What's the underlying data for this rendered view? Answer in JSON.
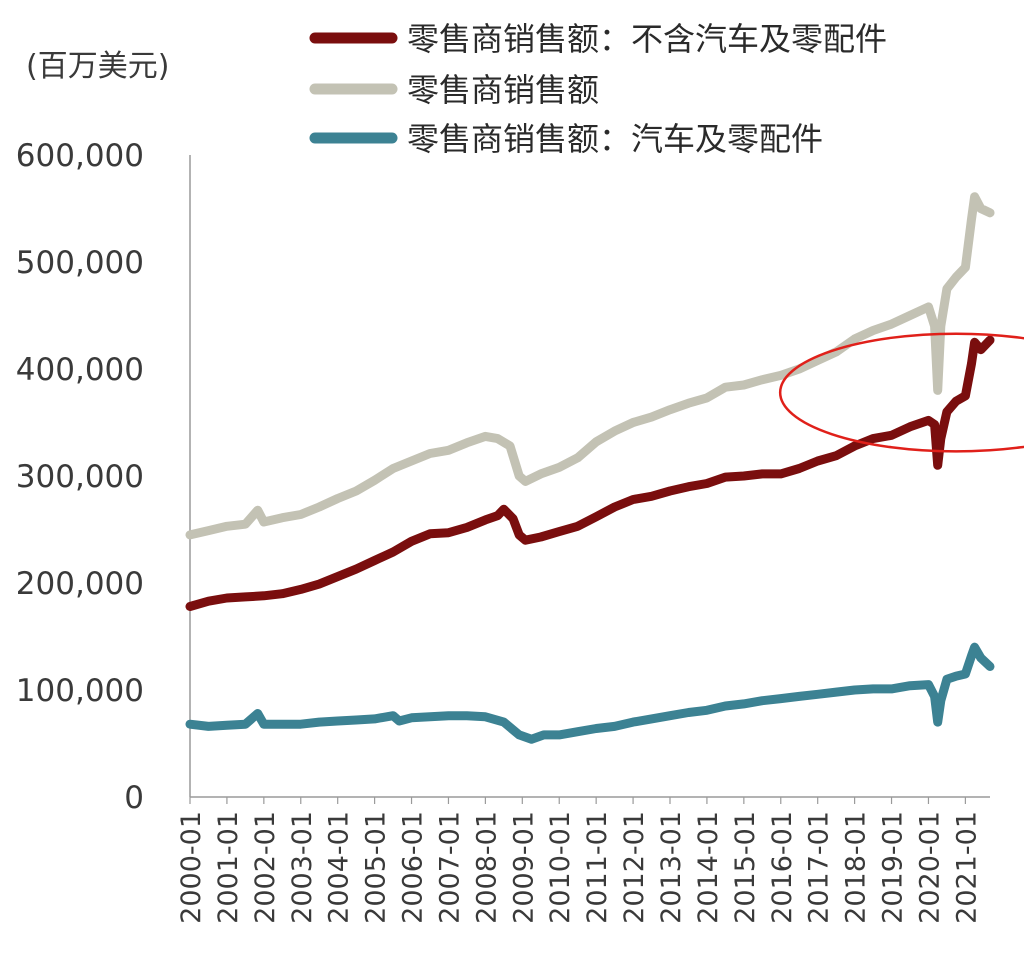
{
  "chart_data": {
    "type": "line",
    "unit_label": "(百万美元)",
    "x_start": "2000-01",
    "x_end": "2021-09",
    "x_ticks": [
      "2000-01",
      "2001-01",
      "2002-01",
      "2003-01",
      "2004-01",
      "2005-01",
      "2006-01",
      "2007-01",
      "2008-01",
      "2009-01",
      "2010-01",
      "2011-01",
      "2012-01",
      "2013-01",
      "2014-01",
      "2015-01",
      "2016-01",
      "2017-01",
      "2018-01",
      "2019-01",
      "2020-01",
      "2021-01"
    ],
    "y_ticks": [
      "0",
      "100,000",
      "200,000",
      "300,000",
      "400,000",
      "500,000",
      "600,000"
    ],
    "ylim": [
      0,
      600000
    ],
    "legend_position": "top",
    "series": [
      {
        "name": "零售商销售额：不含汽车及零配件",
        "color": "#7a0e0e",
        "points": [
          [
            "2000-01",
            178000
          ],
          [
            "2000-07",
            183000
          ],
          [
            "2001-01",
            186000
          ],
          [
            "2001-07",
            187000
          ],
          [
            "2002-01",
            188000
          ],
          [
            "2002-07",
            190000
          ],
          [
            "2003-01",
            194000
          ],
          [
            "2003-07",
            199000
          ],
          [
            "2004-01",
            206000
          ],
          [
            "2004-07",
            213000
          ],
          [
            "2005-01",
            221000
          ],
          [
            "2005-07",
            229000
          ],
          [
            "2006-01",
            239000
          ],
          [
            "2006-07",
            246000
          ],
          [
            "2007-01",
            247000
          ],
          [
            "2007-07",
            252000
          ],
          [
            "2008-01",
            259000
          ],
          [
            "2008-05",
            263000
          ],
          [
            "2008-07",
            269000
          ],
          [
            "2008-10",
            260000
          ],
          [
            "2008-12",
            245000
          ],
          [
            "2009-02",
            240000
          ],
          [
            "2009-07",
            243000
          ],
          [
            "2010-01",
            248000
          ],
          [
            "2010-07",
            253000
          ],
          [
            "2011-01",
            262000
          ],
          [
            "2011-07",
            271000
          ],
          [
            "2012-01",
            278000
          ],
          [
            "2012-07",
            281000
          ],
          [
            "2013-01",
            286000
          ],
          [
            "2013-07",
            290000
          ],
          [
            "2014-01",
            293000
          ],
          [
            "2014-07",
            299000
          ],
          [
            "2015-01",
            300000
          ],
          [
            "2015-07",
            302000
          ],
          [
            "2016-01",
            302000
          ],
          [
            "2016-07",
            307000
          ],
          [
            "2017-01",
            314000
          ],
          [
            "2017-07",
            319000
          ],
          [
            "2018-01",
            328000
          ],
          [
            "2018-07",
            335000
          ],
          [
            "2019-01",
            338000
          ],
          [
            "2019-07",
            346000
          ],
          [
            "2020-01",
            352000
          ],
          [
            "2020-03",
            348000
          ],
          [
            "2020-04",
            310000
          ],
          [
            "2020-05",
            335000
          ],
          [
            "2020-07",
            360000
          ],
          [
            "2020-10",
            370000
          ],
          [
            "2021-01",
            375000
          ],
          [
            "2021-03",
            405000
          ],
          [
            "2021-04",
            425000
          ],
          [
            "2021-06",
            418000
          ],
          [
            "2021-09",
            427000
          ]
        ]
      },
      {
        "name": "零售商销售额",
        "color": "#c3c2b4",
        "points": [
          [
            "2000-01",
            245000
          ],
          [
            "2000-07",
            249000
          ],
          [
            "2001-01",
            253000
          ],
          [
            "2001-07",
            255000
          ],
          [
            "2001-11",
            268000
          ],
          [
            "2002-01",
            257000
          ],
          [
            "2002-07",
            261000
          ],
          [
            "2003-01",
            264000
          ],
          [
            "2003-07",
            271000
          ],
          [
            "2004-01",
            279000
          ],
          [
            "2004-07",
            286000
          ],
          [
            "2005-01",
            296000
          ],
          [
            "2005-07",
            307000
          ],
          [
            "2006-01",
            314000
          ],
          [
            "2006-07",
            321000
          ],
          [
            "2007-01",
            324000
          ],
          [
            "2007-07",
            331000
          ],
          [
            "2008-01",
            337000
          ],
          [
            "2008-05",
            335000
          ],
          [
            "2008-09",
            328000
          ],
          [
            "2008-12",
            300000
          ],
          [
            "2009-02",
            295000
          ],
          [
            "2009-07",
            302000
          ],
          [
            "2010-01",
            308000
          ],
          [
            "2010-07",
            317000
          ],
          [
            "2011-01",
            332000
          ],
          [
            "2011-07",
            342000
          ],
          [
            "2012-01",
            350000
          ],
          [
            "2012-07",
            355000
          ],
          [
            "2013-01",
            362000
          ],
          [
            "2013-07",
            368000
          ],
          [
            "2014-01",
            373000
          ],
          [
            "2014-07",
            383000
          ],
          [
            "2015-01",
            385000
          ],
          [
            "2015-07",
            390000
          ],
          [
            "2016-01",
            394000
          ],
          [
            "2016-07",
            400000
          ],
          [
            "2017-01",
            408000
          ],
          [
            "2017-07",
            416000
          ],
          [
            "2018-01",
            428000
          ],
          [
            "2018-07",
            436000
          ],
          [
            "2019-01",
            442000
          ],
          [
            "2019-07",
            450000
          ],
          [
            "2020-01",
            458000
          ],
          [
            "2020-03",
            440000
          ],
          [
            "2020-04",
            380000
          ],
          [
            "2020-05",
            440000
          ],
          [
            "2020-07",
            475000
          ],
          [
            "2020-10",
            486000
          ],
          [
            "2021-01",
            495000
          ],
          [
            "2021-03",
            540000
          ],
          [
            "2021-04",
            561000
          ],
          [
            "2021-06",
            550000
          ],
          [
            "2021-09",
            546000
          ]
        ]
      },
      {
        "name": "零售商销售额：汽车及零配件",
        "color": "#3c8293",
        "points": [
          [
            "2000-01",
            68000
          ],
          [
            "2000-07",
            66000
          ],
          [
            "2001-01",
            67000
          ],
          [
            "2001-07",
            68000
          ],
          [
            "2001-11",
            78000
          ],
          [
            "2002-01",
            68000
          ],
          [
            "2002-07",
            68000
          ],
          [
            "2003-01",
            68000
          ],
          [
            "2003-07",
            70000
          ],
          [
            "2004-01",
            71000
          ],
          [
            "2004-07",
            72000
          ],
          [
            "2005-01",
            73000
          ],
          [
            "2005-07",
            76000
          ],
          [
            "2005-09",
            71000
          ],
          [
            "2006-01",
            74000
          ],
          [
            "2006-07",
            75000
          ],
          [
            "2007-01",
            76000
          ],
          [
            "2007-07",
            76000
          ],
          [
            "2008-01",
            75000
          ],
          [
            "2008-07",
            70000
          ],
          [
            "2008-12",
            58000
          ],
          [
            "2009-04",
            54000
          ],
          [
            "2009-08",
            58000
          ],
          [
            "2010-01",
            58000
          ],
          [
            "2010-07",
            61000
          ],
          [
            "2011-01",
            64000
          ],
          [
            "2011-07",
            66000
          ],
          [
            "2012-01",
            70000
          ],
          [
            "2012-07",
            73000
          ],
          [
            "2013-01",
            76000
          ],
          [
            "2013-07",
            79000
          ],
          [
            "2014-01",
            81000
          ],
          [
            "2014-07",
            85000
          ],
          [
            "2015-01",
            87000
          ],
          [
            "2015-07",
            90000
          ],
          [
            "2016-01",
            92000
          ],
          [
            "2016-07",
            94000
          ],
          [
            "2017-01",
            96000
          ],
          [
            "2017-07",
            98000
          ],
          [
            "2018-01",
            100000
          ],
          [
            "2018-07",
            101000
          ],
          [
            "2019-01",
            101000
          ],
          [
            "2019-07",
            104000
          ],
          [
            "2020-01",
            105000
          ],
          [
            "2020-03",
            94000
          ],
          [
            "2020-04",
            70000
          ],
          [
            "2020-05",
            90000
          ],
          [
            "2020-07",
            110000
          ],
          [
            "2020-10",
            113000
          ],
          [
            "2021-01",
            115000
          ],
          [
            "2021-03",
            132000
          ],
          [
            "2021-04",
            140000
          ],
          [
            "2021-06",
            130000
          ],
          [
            "2021-09",
            122000
          ]
        ]
      }
    ],
    "highlight": {
      "type": "ellipse",
      "color": "#e0201a",
      "center": [
        "2020-10",
        378000
      ],
      "span_months": 22,
      "span_y": 55000
    }
  }
}
